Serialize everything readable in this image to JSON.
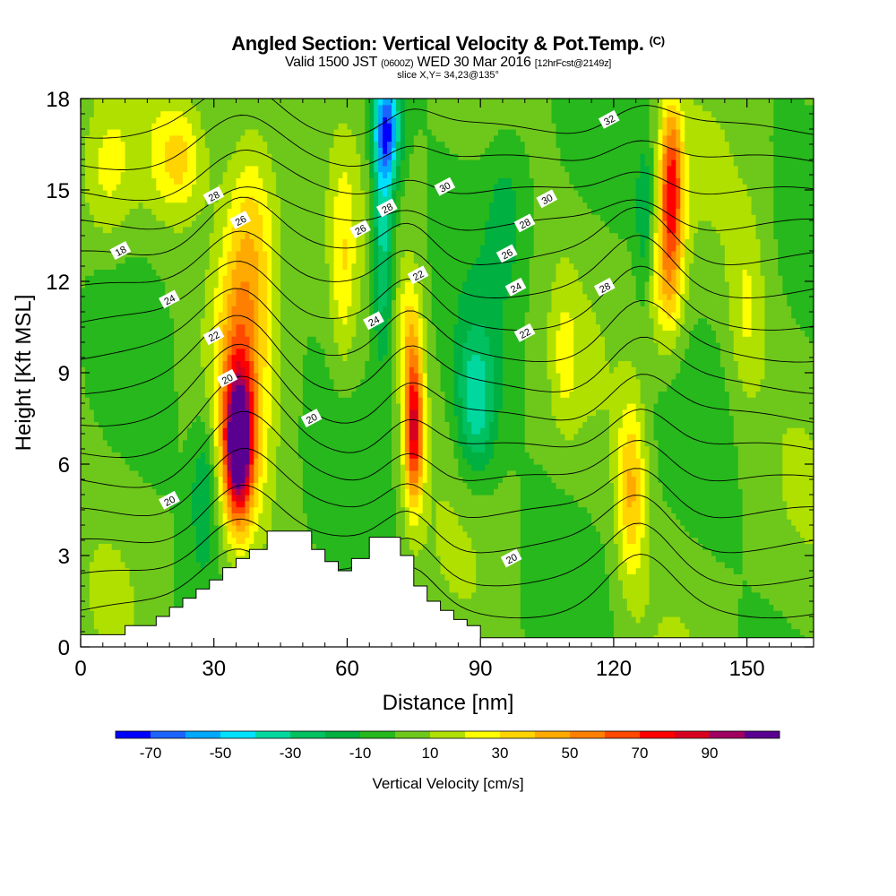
{
  "header": {
    "title": "Angled Section: Vertical Velocity & Pot.Temp.",
    "copyright": "(C)",
    "valid_a": "Valid 1500 JST",
    "valid_z": "(0600Z)",
    "valid_b": "WED 30 Mar 2016",
    "valid_fcst": "[12hrFcst@2149z]",
    "slice": "slice X,Y= 34,23@135°"
  },
  "chart_data": {
    "type": "heatmap",
    "xlabel": "Distance [nm]",
    "ylabel": "Height [Kft MSL]",
    "xlim": [
      0,
      165
    ],
    "ylim": [
      0,
      18
    ],
    "xticks": [
      "0",
      "30",
      "60",
      "90",
      "120",
      "150"
    ],
    "yticks": [
      "0",
      "3",
      "6",
      "9",
      "12",
      "15",
      "18"
    ],
    "colorbar": {
      "label": "Vertical Velocity [cm/s]",
      "ticks": [
        "-70",
        "-50",
        "-30",
        "-10",
        "10",
        "30",
        "50",
        "70",
        "90"
      ],
      "bins": [
        -80,
        -70,
        -60,
        -50,
        -40,
        -30,
        -20,
        -10,
        0,
        10,
        20,
        30,
        40,
        50,
        60,
        70,
        80,
        90,
        100
      ],
      "colors": [
        "#0000ff",
        "#1c64ff",
        "#00a8ff",
        "#00e0ff",
        "#00d8a0",
        "#00c060",
        "#00b040",
        "#26b81c",
        "#6ec81c",
        "#b0e000",
        "#ffff00",
        "#ffd400",
        "#ffaa00",
        "#ff8000",
        "#ff4800",
        "#ff0000",
        "#d80020",
        "#a00060",
        "#5a0090"
      ]
    },
    "velocity_features": [
      {
        "label": "updraft",
        "x": 35,
        "y": 6.5,
        "peak_cm_s": 95
      },
      {
        "label": "updraft",
        "x": 75,
        "y": 7.0,
        "peak_cm_s": 75
      },
      {
        "label": "updraft upper",
        "x": 133,
        "y": 15.0,
        "peak_cm_s": 70
      },
      {
        "label": "updraft",
        "x": 124,
        "y": 5.0,
        "peak_cm_s": 35
      },
      {
        "label": "downdraft",
        "x": 69,
        "y": 17.0,
        "peak_cm_s": -55
      },
      {
        "label": "downdraft",
        "x": 88,
        "y": 8.0,
        "peak_cm_s": -30
      }
    ],
    "theta_contour_labels": [
      "18",
      "20",
      "20",
      "20",
      "20",
      "22",
      "22",
      "22",
      "24",
      "24",
      "24",
      "26",
      "26",
      "26",
      "28",
      "28",
      "28",
      "28",
      "30",
      "30",
      "32"
    ],
    "terrain_profile": [
      [
        0,
        0.4
      ],
      [
        10,
        0.4
      ],
      [
        10,
        0.7
      ],
      [
        17,
        0.7
      ],
      [
        17,
        1.0
      ],
      [
        20,
        1.0
      ],
      [
        20,
        1.3
      ],
      [
        23,
        1.3
      ],
      [
        23,
        1.6
      ],
      [
        26,
        1.6
      ],
      [
        26,
        1.9
      ],
      [
        29,
        1.9
      ],
      [
        29,
        2.2
      ],
      [
        32,
        2.2
      ],
      [
        32,
        2.6
      ],
      [
        35,
        2.6
      ],
      [
        35,
        2.9
      ],
      [
        38,
        2.9
      ],
      [
        38,
        3.2
      ],
      [
        42,
        3.2
      ],
      [
        42,
        3.8
      ],
      [
        52,
        3.8
      ],
      [
        52,
        3.2
      ],
      [
        55,
        3.2
      ],
      [
        55,
        2.8
      ],
      [
        58,
        2.8
      ],
      [
        58,
        2.5
      ],
      [
        61,
        2.5
      ],
      [
        61,
        2.9
      ],
      [
        65,
        2.9
      ],
      [
        65,
        3.6
      ],
      [
        72,
        3.6
      ],
      [
        72,
        3.0
      ],
      [
        75,
        3.0
      ],
      [
        75,
        2.0
      ],
      [
        78,
        2.0
      ],
      [
        78,
        1.5
      ],
      [
        81,
        1.5
      ],
      [
        81,
        1.2
      ],
      [
        84,
        1.2
      ],
      [
        84,
        0.9
      ],
      [
        87,
        0.9
      ],
      [
        87,
        0.7
      ],
      [
        90,
        0.7
      ],
      [
        90,
        0.3
      ],
      [
        165,
        0.3
      ]
    ]
  }
}
